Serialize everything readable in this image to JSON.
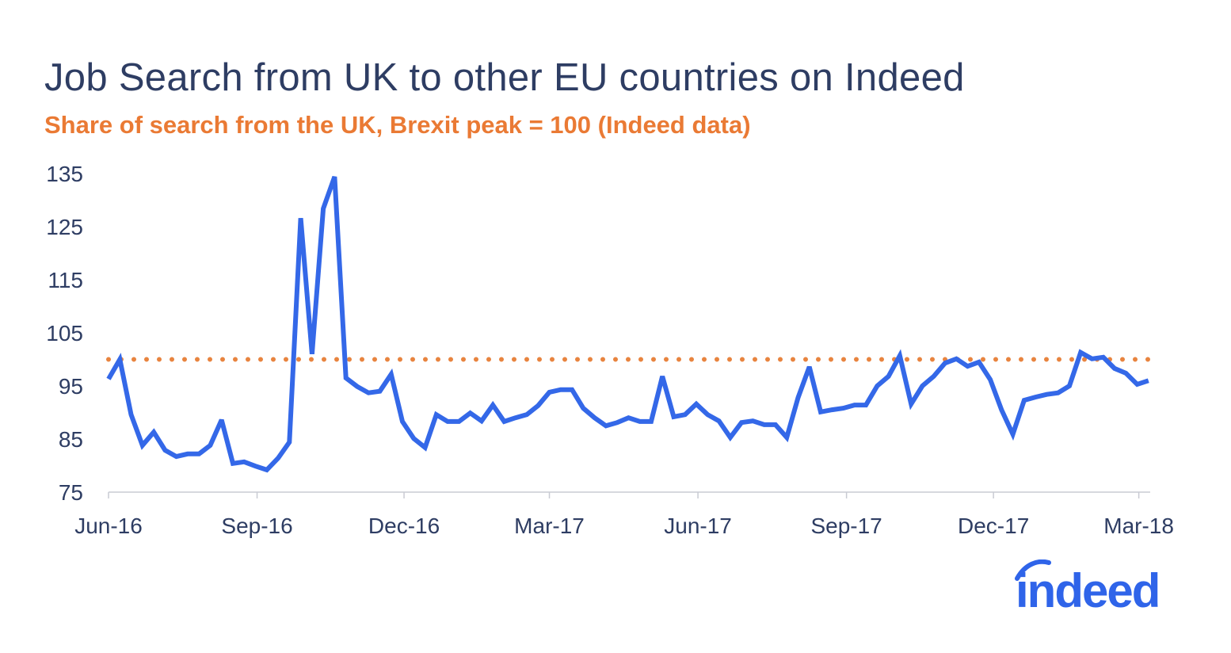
{
  "chart_data": {
    "type": "line",
    "title": "Job Search from UK to other EU countries on Indeed",
    "subtitle": "Share of search from the UK, Brexit peak = 100 (Indeed data)",
    "xlabel": "",
    "ylabel": "",
    "ylim": [
      75,
      135
    ],
    "yticks": [
      75,
      85,
      95,
      105,
      115,
      125,
      135
    ],
    "xticks": [
      {
        "label": "Jun-16",
        "date": "2016-06-01"
      },
      {
        "label": "Sep-16",
        "date": "2016-09-01"
      },
      {
        "label": "Dec-16",
        "date": "2016-12-01"
      },
      {
        "label": "Mar-17",
        "date": "2017-03-01"
      },
      {
        "label": "Jun-17",
        "date": "2017-06-01"
      },
      {
        "label": "Sep-17",
        "date": "2017-09-01"
      },
      {
        "label": "Dec-17",
        "date": "2017-12-01"
      },
      {
        "label": "Mar-18",
        "date": "2018-03-01"
      }
    ],
    "grid": false,
    "legend": "none",
    "reference_line": {
      "y": 100,
      "style": "dotted",
      "color": "#e8843f"
    },
    "series": [
      {
        "color": "#3468e8",
        "x": [
          "2016-06-01",
          "2016-06-08",
          "2016-06-15",
          "2016-06-22",
          "2016-06-29",
          "2016-07-06",
          "2016-07-13",
          "2016-07-20",
          "2016-07-27",
          "2016-08-03",
          "2016-08-10",
          "2016-08-17",
          "2016-08-24",
          "2016-08-31",
          "2016-09-07",
          "2016-09-14",
          "2016-09-21",
          "2016-09-28",
          "2016-10-05",
          "2016-10-12",
          "2016-10-19",
          "2016-10-26",
          "2016-11-02",
          "2016-11-09",
          "2016-11-16",
          "2016-11-23",
          "2016-11-30",
          "2016-12-07",
          "2016-12-14",
          "2016-12-21",
          "2016-12-28",
          "2017-01-04",
          "2017-01-11",
          "2017-01-18",
          "2017-01-25",
          "2017-02-01",
          "2017-02-08",
          "2017-02-15",
          "2017-02-22",
          "2017-03-01",
          "2017-03-08",
          "2017-03-15",
          "2017-03-22",
          "2017-03-29",
          "2017-04-05",
          "2017-04-12",
          "2017-04-19",
          "2017-04-26",
          "2017-05-03",
          "2017-05-10",
          "2017-05-17",
          "2017-05-24",
          "2017-05-31",
          "2017-06-07",
          "2017-06-14",
          "2017-06-21",
          "2017-06-28",
          "2017-07-05",
          "2017-07-12",
          "2017-07-19",
          "2017-07-26",
          "2017-08-02",
          "2017-08-09",
          "2017-08-16",
          "2017-08-23",
          "2017-08-30",
          "2017-09-06",
          "2017-09-13",
          "2017-09-20",
          "2017-09-27",
          "2017-10-04",
          "2017-10-11",
          "2017-10-18",
          "2017-10-25",
          "2017-11-01",
          "2017-11-08",
          "2017-11-15",
          "2017-11-22",
          "2017-11-29",
          "2017-12-06",
          "2017-12-13",
          "2017-12-20",
          "2017-12-27",
          "2018-01-03",
          "2018-01-10",
          "2018-01-17",
          "2018-01-24",
          "2018-01-31",
          "2018-02-07",
          "2018-02-14",
          "2018-02-21",
          "2018-02-28",
          "2018-03-07"
        ],
        "values": [
          96.3,
          100,
          89.6,
          83.8,
          86.3,
          82.9,
          81.7,
          82.2,
          82.2,
          83.8,
          88.6,
          80.4,
          80.7,
          79.9,
          79.2,
          81.4,
          84.4,
          126.6,
          101,
          128.4,
          134.4,
          96.5,
          94.9,
          93.7,
          94,
          97.2,
          88.3,
          85.1,
          83.4,
          89.6,
          88.3,
          88.3,
          89.9,
          88.4,
          91.4,
          88.3,
          89,
          89.6,
          91.3,
          93.8,
          94.3,
          94.3,
          90.8,
          89,
          87.5,
          88.1,
          89,
          88.3,
          88.3,
          96.8,
          89.2,
          89.6,
          91.6,
          89.6,
          88.4,
          85.3,
          88.1,
          88.4,
          87.7,
          87.7,
          85.3,
          92.8,
          98.6,
          90.1,
          90.5,
          90.8,
          91.4,
          91.4,
          95,
          96.8,
          100.7,
          91.6,
          95,
          96.8,
          99.3,
          100.1,
          98.7,
          99.5,
          96.2,
          90.5,
          85.9,
          92.3,
          92.9,
          93.4,
          93.7,
          95,
          101.3,
          100.1,
          100.4,
          98.3,
          97.4,
          95.3,
          96
        ]
      }
    ]
  },
  "logo": {
    "text": "indeed",
    "color": "#2f64e9"
  }
}
